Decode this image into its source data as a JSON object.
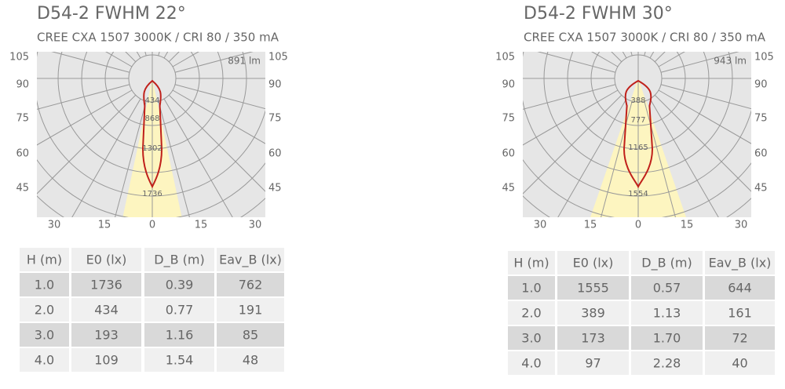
{
  "panels": [
    {
      "title": "D54-2  FWHM  22°",
      "subtitle": "CREE CXA 1507 3000K / CRI 80 / 350 mA",
      "lumens": "891 lm",
      "angle_labels_left": [
        "105",
        "90",
        "75",
        "60",
        "45"
      ],
      "angle_labels_right": [
        "105",
        "90",
        "75",
        "60",
        "45"
      ],
      "bottom_labels": [
        "30",
        "15",
        "0",
        "15",
        "30"
      ],
      "ring_labels": [
        "434",
        "868",
        "1302",
        "1736"
      ],
      "table": {
        "header": [
          "H (m)",
          "E0 (lx)",
          "D_B (m)",
          "Eav_B (lx)"
        ],
        "rows": [
          [
            "1.0",
            "1736",
            "0.39",
            "762"
          ],
          [
            "2.0",
            "434",
            "0.77",
            "191"
          ],
          [
            "3.0",
            "193",
            "1.16",
            "85"
          ],
          [
            "4.0",
            "109",
            "1.54",
            "48"
          ]
        ]
      }
    },
    {
      "title": "D54-2  FWHM  30°",
      "subtitle": "CREE CXA 1507 3000K / CRI 80 / 350 mA",
      "lumens": "943 lm",
      "angle_labels_left": [
        "105",
        "90",
        "75",
        "60",
        "45"
      ],
      "angle_labels_right": [
        "105",
        "90",
        "75",
        "60",
        "45"
      ],
      "bottom_labels": [
        "30",
        "15",
        "0",
        "15",
        "30"
      ],
      "ring_labels": [
        "388",
        "777",
        "1165",
        "1554"
      ],
      "table": {
        "header": [
          "H (m)",
          "E0 (lx)",
          "D_B (m)",
          "Eav_B (lx)"
        ],
        "rows": [
          [
            "1.0",
            "1555",
            "0.57",
            "644"
          ],
          [
            "2.0",
            "389",
            "1.13",
            "161"
          ],
          [
            "3.0",
            "173",
            "1.70",
            "72"
          ],
          [
            "4.0",
            "97",
            "2.28",
            "40"
          ]
        ]
      }
    }
  ]
}
